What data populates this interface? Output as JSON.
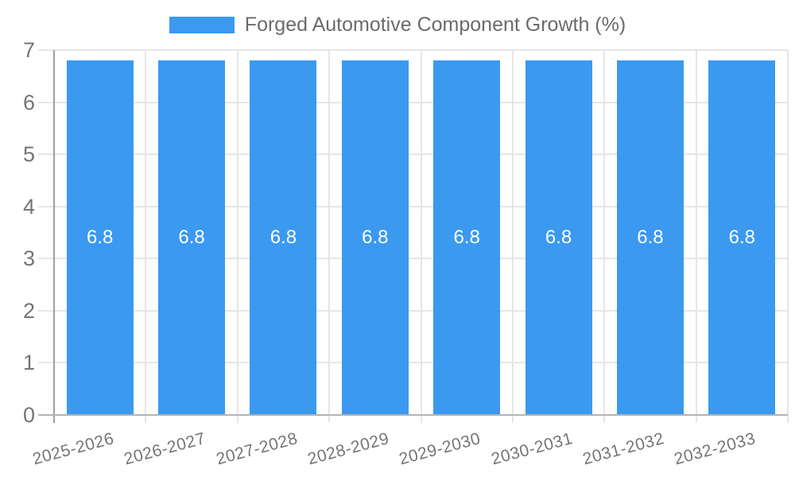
{
  "colors": {
    "background": "#ffffff",
    "bar": "#3b99f0",
    "grid_line": "#e6e6e6",
    "y_axis_line": "#9e9e9e",
    "x_baseline": "#b3b3b3",
    "tick_label": "#757575",
    "bar_value_label": "#ffffff",
    "legend_text": "#6b6b6b"
  },
  "chart_data": {
    "type": "bar",
    "title": "Forged Automotive Component Growth (%)",
    "categories": [
      "2025-2026",
      "2026-2027",
      "2027-2028",
      "2028-2029",
      "2029-2030",
      "2030-2031",
      "2031-2032",
      "2032-2033"
    ],
    "values": [
      6.8,
      6.8,
      6.8,
      6.8,
      6.8,
      6.8,
      6.8,
      6.8
    ],
    "bar_labels": [
      "6.8",
      "6.8",
      "6.8",
      "6.8",
      "6.8",
      "6.8",
      "6.8",
      "6.8"
    ],
    "xlabel": "",
    "ylabel": "",
    "ylim": [
      0,
      7
    ],
    "yticks": [
      0,
      1,
      2,
      3,
      4,
      5,
      6,
      7
    ],
    "grid": true,
    "legend_position": "top",
    "x_tick_rotation_deg": -15
  }
}
